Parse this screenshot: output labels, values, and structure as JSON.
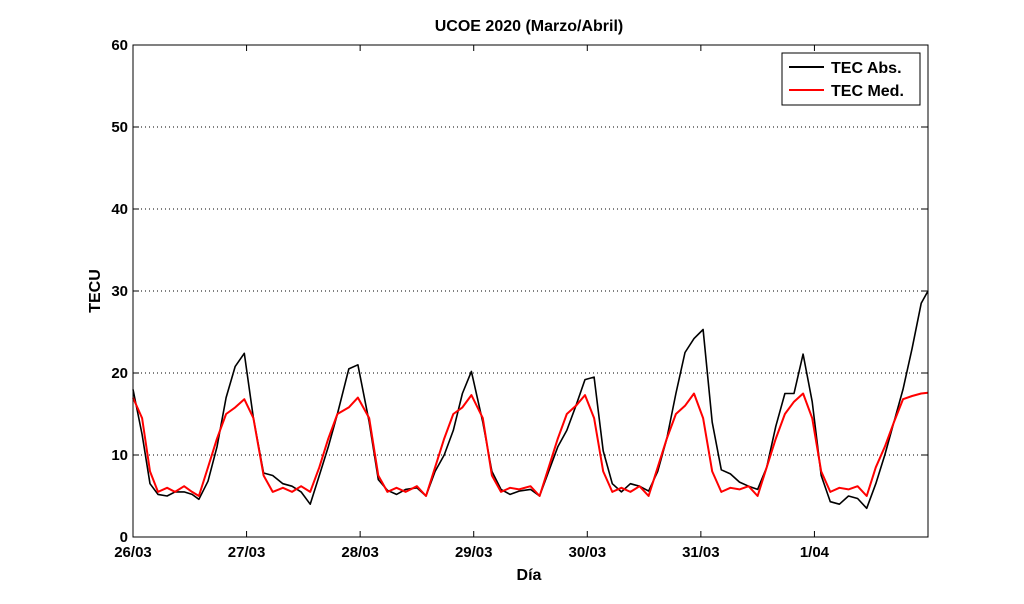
{
  "chart_data": {
    "type": "line",
    "title": "UCOE 2020 (Marzo/Abril)",
    "xlabel": "Día",
    "ylabel": "TECU",
    "xlim": [
      0,
      7
    ],
    "ylim": [
      0,
      60
    ],
    "x_ticks": [
      0,
      1,
      2,
      3,
      4,
      5,
      6
    ],
    "x_tick_labels": [
      "26/03",
      "27/03",
      "28/03",
      "29/03",
      "30/03",
      "31/03",
      "1/04"
    ],
    "y_ticks": [
      0,
      10,
      20,
      30,
      40,
      50,
      60
    ],
    "grid": "y-dotted",
    "legend_position": "top-right",
    "series": [
      {
        "name": "TEC Abs.",
        "color": "#000000",
        "points": [
          [
            0.0,
            18.0
          ],
          [
            0.08,
            12.5
          ],
          [
            0.15,
            6.5
          ],
          [
            0.22,
            5.2
          ],
          [
            0.3,
            5.0
          ],
          [
            0.37,
            5.5
          ],
          [
            0.45,
            5.5
          ],
          [
            0.52,
            5.2
          ],
          [
            0.58,
            4.6
          ],
          [
            0.66,
            6.8
          ],
          [
            0.74,
            11.0
          ],
          [
            0.82,
            17.0
          ],
          [
            0.9,
            20.8
          ],
          [
            0.98,
            22.4
          ],
          [
            1.06,
            14.5
          ],
          [
            1.15,
            7.8
          ],
          [
            1.23,
            7.5
          ],
          [
            1.32,
            6.5
          ],
          [
            1.4,
            6.2
          ],
          [
            1.48,
            5.5
          ],
          [
            1.56,
            4.0
          ],
          [
            1.64,
            7.5
          ],
          [
            1.72,
            11.0
          ],
          [
            1.8,
            15.0
          ],
          [
            1.9,
            20.5
          ],
          [
            1.98,
            21.0
          ],
          [
            2.08,
            14.0
          ],
          [
            2.16,
            7.0
          ],
          [
            2.24,
            5.7
          ],
          [
            2.32,
            5.2
          ],
          [
            2.4,
            5.8
          ],
          [
            2.5,
            6.0
          ],
          [
            2.58,
            5.0
          ],
          [
            2.66,
            8.0
          ],
          [
            2.74,
            10.0
          ],
          [
            2.82,
            13.0
          ],
          [
            2.9,
            17.5
          ],
          [
            2.98,
            20.2
          ],
          [
            3.08,
            14.0
          ],
          [
            3.16,
            8.0
          ],
          [
            3.24,
            5.8
          ],
          [
            3.32,
            5.2
          ],
          [
            3.4,
            5.6
          ],
          [
            3.5,
            5.8
          ],
          [
            3.58,
            5.0
          ],
          [
            3.66,
            8.0
          ],
          [
            3.74,
            11.0
          ],
          [
            3.82,
            13.0
          ],
          [
            3.9,
            16.0
          ],
          [
            3.98,
            19.2
          ],
          [
            4.06,
            19.5
          ],
          [
            4.14,
            10.5
          ],
          [
            4.22,
            6.5
          ],
          [
            4.3,
            5.5
          ],
          [
            4.38,
            6.5
          ],
          [
            4.46,
            6.2
          ],
          [
            4.54,
            5.6
          ],
          [
            4.62,
            8.0
          ],
          [
            4.7,
            12.0
          ],
          [
            4.78,
            17.5
          ],
          [
            4.86,
            22.5
          ],
          [
            4.94,
            24.2
          ],
          [
            5.02,
            25.3
          ],
          [
            5.1,
            14.0
          ],
          [
            5.18,
            8.2
          ],
          [
            5.26,
            7.7
          ],
          [
            5.34,
            6.7
          ],
          [
            5.42,
            6.2
          ],
          [
            5.5,
            5.8
          ],
          [
            5.58,
            8.5
          ],
          [
            5.66,
            13.5
          ],
          [
            5.74,
            17.5
          ],
          [
            5.82,
            17.5
          ],
          [
            5.9,
            22.3
          ],
          [
            5.98,
            16.5
          ],
          [
            6.06,
            7.5
          ],
          [
            6.14,
            4.3
          ],
          [
            6.22,
            4.0
          ],
          [
            6.3,
            5.0
          ],
          [
            6.38,
            4.7
          ],
          [
            6.46,
            3.5
          ],
          [
            6.54,
            6.5
          ],
          [
            6.62,
            10.0
          ],
          [
            6.7,
            14.0
          ],
          [
            6.78,
            18.0
          ],
          [
            6.86,
            23.0
          ],
          [
            6.94,
            28.5
          ],
          [
            7.0,
            30.0
          ]
        ]
      },
      {
        "name": "TEC Med.",
        "color": "#ff0000",
        "points": [
          [
            0.0,
            17.0
          ],
          [
            0.08,
            14.5
          ],
          [
            0.15,
            8.0
          ],
          [
            0.22,
            5.5
          ],
          [
            0.3,
            6.0
          ],
          [
            0.37,
            5.5
          ],
          [
            0.45,
            6.2
          ],
          [
            0.52,
            5.5
          ],
          [
            0.58,
            5.0
          ],
          [
            0.66,
            8.5
          ],
          [
            0.74,
            12.0
          ],
          [
            0.82,
            15.0
          ],
          [
            0.9,
            15.8
          ],
          [
            0.98,
            16.8
          ],
          [
            1.06,
            14.5
          ],
          [
            1.15,
            7.5
          ],
          [
            1.23,
            5.5
          ],
          [
            1.32,
            6.0
          ],
          [
            1.4,
            5.5
          ],
          [
            1.48,
            6.2
          ],
          [
            1.56,
            5.5
          ],
          [
            1.64,
            8.5
          ],
          [
            1.72,
            12.0
          ],
          [
            1.8,
            15.0
          ],
          [
            1.9,
            15.8
          ],
          [
            1.98,
            17.0
          ],
          [
            2.08,
            14.5
          ],
          [
            2.16,
            7.5
          ],
          [
            2.24,
            5.5
          ],
          [
            2.32,
            6.0
          ],
          [
            2.4,
            5.5
          ],
          [
            2.5,
            6.2
          ],
          [
            2.58,
            5.0
          ],
          [
            2.66,
            8.5
          ],
          [
            2.74,
            12.0
          ],
          [
            2.82,
            15.0
          ],
          [
            2.9,
            15.8
          ],
          [
            2.98,
            17.3
          ],
          [
            3.08,
            14.5
          ],
          [
            3.16,
            7.5
          ],
          [
            3.24,
            5.5
          ],
          [
            3.32,
            6.0
          ],
          [
            3.4,
            5.8
          ],
          [
            3.5,
            6.2
          ],
          [
            3.58,
            5.0
          ],
          [
            3.66,
            8.5
          ],
          [
            3.74,
            12.0
          ],
          [
            3.82,
            15.0
          ],
          [
            3.9,
            16.0
          ],
          [
            3.98,
            17.3
          ],
          [
            4.06,
            14.5
          ],
          [
            4.14,
            8.0
          ],
          [
            4.22,
            5.5
          ],
          [
            4.3,
            6.0
          ],
          [
            4.38,
            5.5
          ],
          [
            4.46,
            6.2
          ],
          [
            4.54,
            5.0
          ],
          [
            4.62,
            8.5
          ],
          [
            4.7,
            12.0
          ],
          [
            4.78,
            15.0
          ],
          [
            4.86,
            16.0
          ],
          [
            4.94,
            17.5
          ],
          [
            5.02,
            14.5
          ],
          [
            5.1,
            8.0
          ],
          [
            5.18,
            5.5
          ],
          [
            5.26,
            6.0
          ],
          [
            5.34,
            5.8
          ],
          [
            5.42,
            6.2
          ],
          [
            5.5,
            5.0
          ],
          [
            5.58,
            8.5
          ],
          [
            5.66,
            12.0
          ],
          [
            5.74,
            15.0
          ],
          [
            5.82,
            16.5
          ],
          [
            5.9,
            17.5
          ],
          [
            5.98,
            14.5
          ],
          [
            6.06,
            8.0
          ],
          [
            6.14,
            5.5
          ],
          [
            6.22,
            6.0
          ],
          [
            6.3,
            5.8
          ],
          [
            6.38,
            6.2
          ],
          [
            6.46,
            5.0
          ],
          [
            6.54,
            8.5
          ],
          [
            6.62,
            11.0
          ],
          [
            6.7,
            14.0
          ],
          [
            6.78,
            16.8
          ],
          [
            6.86,
            17.2
          ],
          [
            6.94,
            17.5
          ],
          [
            7.0,
            17.6
          ]
        ]
      }
    ]
  }
}
